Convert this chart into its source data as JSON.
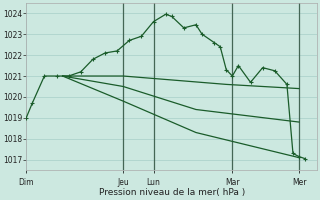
{
  "background_color": "#cce8e0",
  "grid_color": "#a8cfc8",
  "line_color": "#1a5c2a",
  "vline_color": "#446655",
  "xlabel": "Pression niveau de la mer( hPa )",
  "ylim": [
    1016.5,
    1024.5
  ],
  "yticks": [
    1017,
    1018,
    1019,
    1020,
    1021,
    1022,
    1023,
    1024
  ],
  "xlim": [
    0,
    24
  ],
  "day_labels": [
    "Dim",
    "Jeu",
    "Lun",
    "Mar",
    "Mer"
  ],
  "day_positions": [
    0.0,
    8.0,
    10.5,
    17.0,
    22.5
  ],
  "vline_positions": [
    8.0,
    10.5,
    17.0,
    22.5
  ],
  "series1": {
    "x": [
      0,
      0.5,
      1.5,
      2.5,
      3.5,
      4.5,
      5.5,
      6.5,
      7.5,
      8.5,
      9.5,
      10.5,
      11.5,
      12.0,
      13.0,
      14.0,
      14.5,
      15.5,
      16.0,
      16.5,
      17.0,
      17.5,
      18.5,
      19.5,
      20.5,
      21.5,
      22.0,
      22.5,
      23.0
    ],
    "y": [
      1019.0,
      1019.7,
      1021.0,
      1021.0,
      1021.0,
      1021.2,
      1021.8,
      1022.1,
      1022.2,
      1022.7,
      1022.9,
      1023.6,
      1023.95,
      1023.85,
      1023.3,
      1023.45,
      1023.0,
      1022.6,
      1022.4,
      1021.3,
      1021.0,
      1021.5,
      1020.7,
      1021.4,
      1021.25,
      1020.6,
      1017.3,
      1017.15,
      1017.05
    ]
  },
  "series2": {
    "x": [
      3.0,
      8.0,
      16.5,
      22.5
    ],
    "y": [
      1021.0,
      1021.0,
      1020.6,
      1020.4
    ]
  },
  "series3": {
    "x": [
      3.0,
      8.0,
      14.0,
      22.5
    ],
    "y": [
      1021.0,
      1020.5,
      1019.4,
      1018.8
    ]
  },
  "series4": {
    "x": [
      3.0,
      8.0,
      14.0,
      22.5
    ],
    "y": [
      1021.0,
      1019.8,
      1018.3,
      1017.1
    ]
  }
}
